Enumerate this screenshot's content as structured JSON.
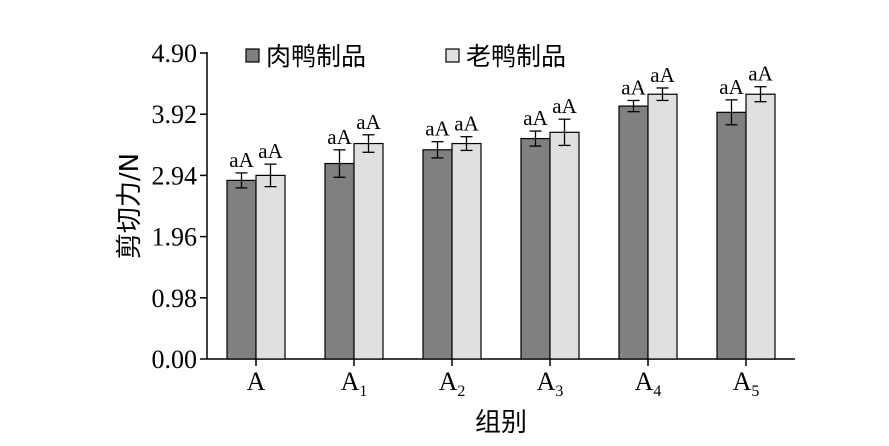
{
  "chart_data": {
    "type": "bar",
    "title": "",
    "xlabel": "组别",
    "ylabel": "剪切力/N",
    "ylim": [
      0,
      4.9
    ],
    "yticks": [
      "0.00",
      "0.98",
      "1.96",
      "2.94",
      "3.92",
      "4.90"
    ],
    "categories": [
      {
        "base": "A",
        "sub": ""
      },
      {
        "base": "A",
        "sub": "1"
      },
      {
        "base": "A",
        "sub": "2"
      },
      {
        "base": "A",
        "sub": "3"
      },
      {
        "base": "A",
        "sub": "4"
      },
      {
        "base": "A",
        "sub": "5"
      }
    ],
    "legend_position": "top-left",
    "grid": false,
    "series": [
      {
        "name": "肉鸭制品",
        "color": "#808080",
        "values": [
          2.86,
          3.13,
          3.35,
          3.53,
          4.05,
          3.95
        ],
        "errors": [
          0.12,
          0.22,
          0.13,
          0.12,
          0.09,
          0.2
        ],
        "labels": [
          "aA",
          "aA",
          "aA",
          "aA",
          "aA",
          "aA"
        ]
      },
      {
        "name": "老鸭制品",
        "color": "#e0e0e0",
        "values": [
          2.94,
          3.45,
          3.45,
          3.63,
          4.24,
          4.24
        ],
        "errors": [
          0.18,
          0.14,
          0.11,
          0.21,
          0.1,
          0.12
        ],
        "labels": [
          "aA",
          "aA",
          "aA",
          "aA",
          "aA",
          "aA"
        ]
      }
    ]
  }
}
